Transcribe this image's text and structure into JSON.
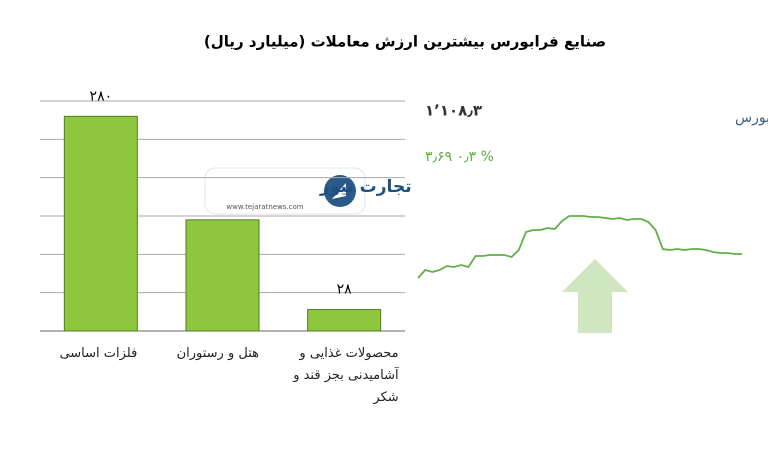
{
  "title": "صنایع فرابورس بیشترین ارزش معاملات  (میلیارد ریال)",
  "logo": {
    "name": "تجارت نیوز",
    "url": "www.tejaratnews.com"
  },
  "chart_data": [
    {
      "type": "bar",
      "categories": [
        "فلزات اساسی",
        "هتل و رستوران",
        "محصولات غذایی و آشامیدنی بجز قند و شکر"
      ],
      "values": [
        280,
        145,
        28
      ],
      "value_labels": [
        "۲۸۰",
        null,
        "۲۸"
      ],
      "color": "#8dc63f",
      "ylim": [
        0,
        300
      ],
      "yticks": [
        0,
        50,
        100,
        150,
        200,
        250,
        300
      ],
      "grid": true
    },
    {
      "type": "line",
      "name": "کل فرابورس",
      "value_text": "۱٬۱۰۸٫۳",
      "change_text": "۳٫۶۹  ۰٫۳ %",
      "color": "#5fb04a",
      "values": [
        2,
        10,
        8,
        10,
        14,
        13,
        15,
        13,
        24,
        24,
        25,
        25,
        25,
        23,
        30,
        48,
        50,
        50,
        52,
        51,
        59,
        64,
        64,
        64,
        63,
        63,
        62,
        61,
        62,
        60,
        61,
        61,
        58,
        50,
        31,
        30,
        31,
        30,
        31,
        31,
        30,
        28,
        27,
        27,
        26,
        26
      ],
      "ylim": [
        0,
        70
      ]
    }
  ]
}
